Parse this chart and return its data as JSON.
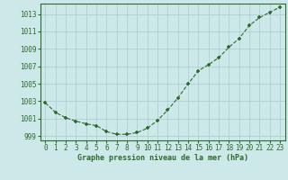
{
  "x": [
    0,
    1,
    2,
    3,
    4,
    5,
    6,
    7,
    8,
    9,
    10,
    11,
    12,
    13,
    14,
    15,
    16,
    17,
    18,
    19,
    20,
    21,
    22,
    23
  ],
  "y": [
    1002.8,
    1001.7,
    1001.1,
    1000.7,
    1000.4,
    1000.2,
    999.5,
    999.2,
    999.2,
    999.4,
    999.9,
    1000.8,
    1002.0,
    1003.4,
    1005.0,
    1006.5,
    1007.2,
    1008.0,
    1009.2,
    1010.2,
    1011.7,
    1012.6,
    1013.2,
    1013.8
  ],
  "line_color": "#2d6a2d",
  "marker": "+",
  "bg_color": "#cce8e8",
  "grid_color": "#aacccc",
  "xlabel": "Graphe pression niveau de la mer (hPa)",
  "xlabel_color": "#2d6a2d",
  "tick_color": "#2d6a2d",
  "ylim": [
    998.5,
    1014.2
  ],
  "yticks": [
    999,
    1001,
    1003,
    1005,
    1007,
    1009,
    1011,
    1013
  ],
  "xticks": [
    0,
    1,
    2,
    3,
    4,
    5,
    6,
    7,
    8,
    9,
    10,
    11,
    12,
    13,
    14,
    15,
    16,
    17,
    18,
    19,
    20,
    21,
    22,
    23
  ],
  "border_color": "#2d6a2d",
  "markersize": 3.5,
  "linewidth": 0.8,
  "xlabel_fontsize": 6.0,
  "tick_fontsize": 5.5
}
